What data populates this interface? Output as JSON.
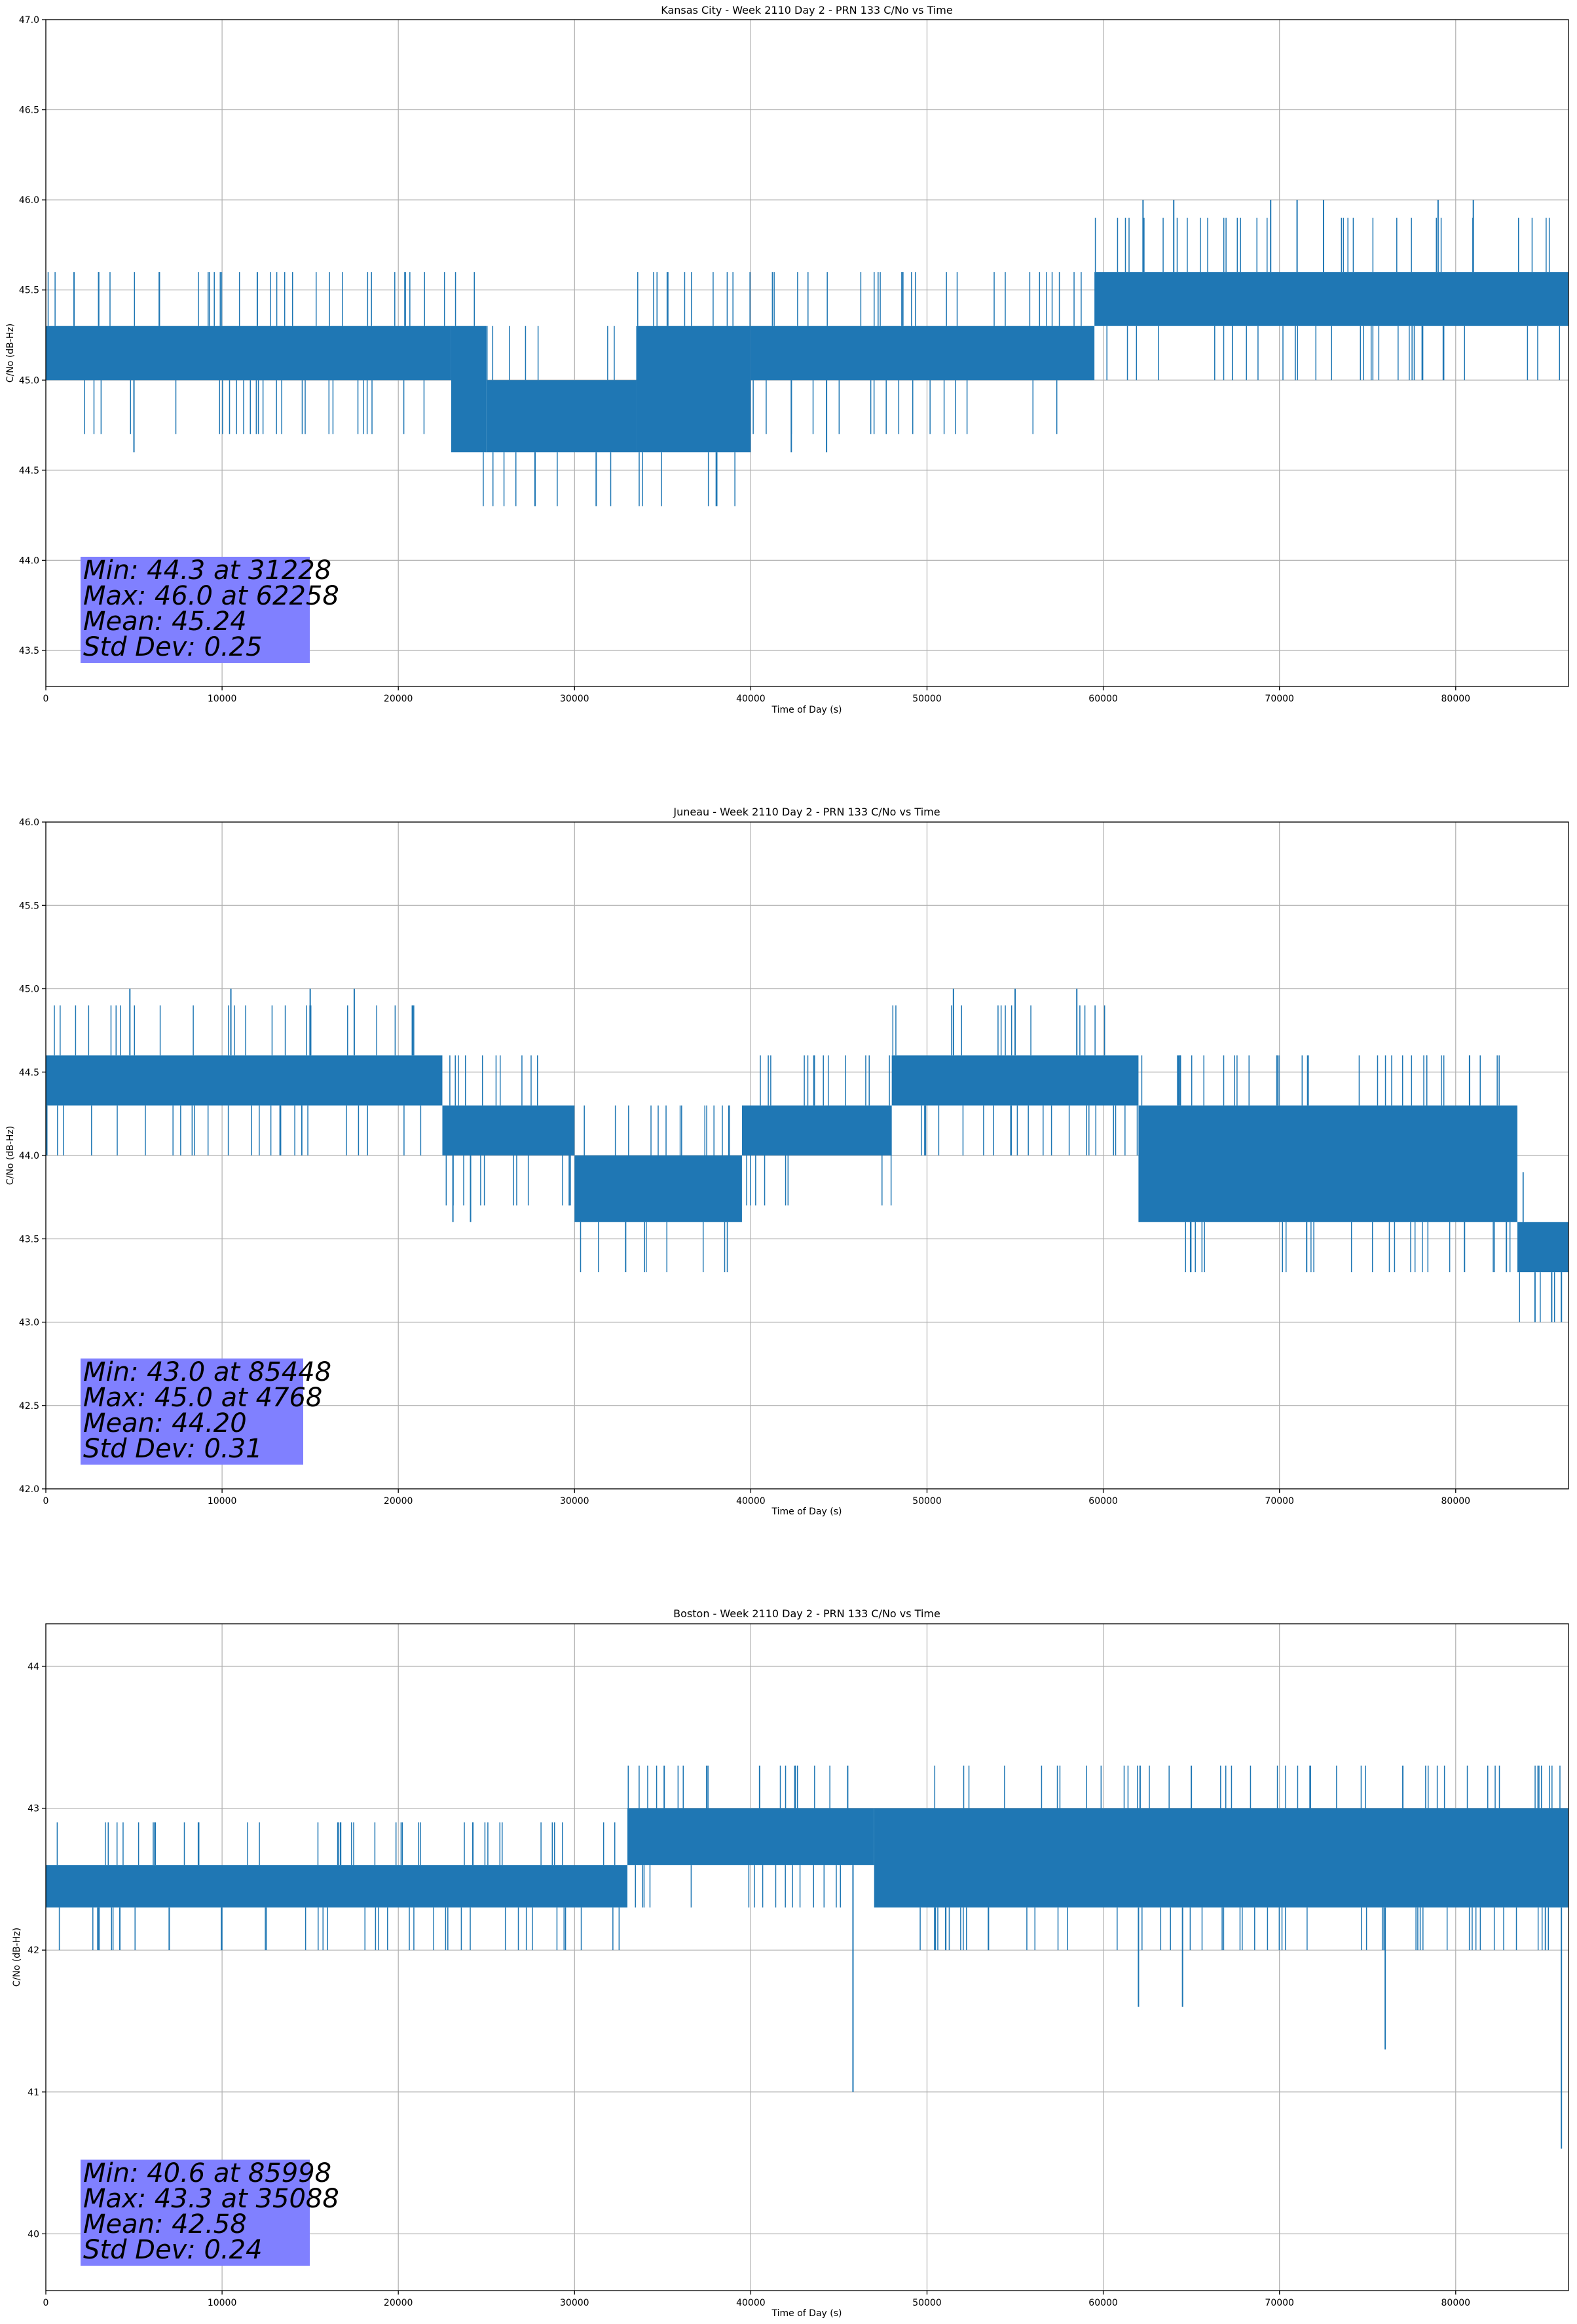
{
  "colors": {
    "series": "#1f77b4",
    "stats_box": "#8080ff",
    "grid": "#b0b0b0"
  },
  "chart_data": [
    {
      "type": "line",
      "title": "Kansas City - Week 2110 Day 2 - PRN 133 C/No vs Time",
      "xlabel": "Time of Day (s)",
      "ylabel": "C/No (dB-Hz)",
      "xlim": [
        0,
        86400
      ],
      "ylim": [
        43.3,
        47.0
      ],
      "xticks": [
        0,
        10000,
        20000,
        30000,
        40000,
        50000,
        60000,
        70000,
        80000
      ],
      "xtick_labels": [
        "0",
        "10000",
        "20000",
        "30000",
        "40000",
        "50000",
        "60000",
        "70000",
        "80000"
      ],
      "yticks": [
        43.5,
        44.0,
        44.5,
        45.0,
        45.5,
        46.0,
        46.5,
        47.0
      ],
      "ytick_labels": [
        "43.5",
        "44.0",
        "44.5",
        "45.0",
        "45.5",
        "46.0",
        "46.5",
        "47.0"
      ],
      "grid": true,
      "segments": [
        {
          "x0": 0,
          "x1": 23000,
          "low": 45.0,
          "high": 45.3
        },
        {
          "x0": 23000,
          "x1": 25000,
          "low": 44.6,
          "high": 45.3
        },
        {
          "x0": 25000,
          "x1": 33500,
          "low": 44.6,
          "high": 45.0
        },
        {
          "x0": 33500,
          "x1": 40000,
          "low": 44.6,
          "high": 45.3
        },
        {
          "x0": 40000,
          "x1": 59500,
          "low": 45.0,
          "high": 45.3
        },
        {
          "x0": 59500,
          "x1": 86400,
          "low": 45.3,
          "high": 45.6
        }
      ],
      "spikes": [
        {
          "x": 31228,
          "value": 44.3
        },
        {
          "x": 62258,
          "value": 46.0
        },
        {
          "x": 64000,
          "value": 46.0
        },
        {
          "x": 69500,
          "value": 46.0
        },
        {
          "x": 71000,
          "value": 46.0
        },
        {
          "x": 72500,
          "value": 46.0
        },
        {
          "x": 79000,
          "value": 46.0
        },
        {
          "x": 81000,
          "value": 46.0
        },
        {
          "x": 12000,
          "value": 45.6
        },
        {
          "x": 5000,
          "value": 44.6
        },
        {
          "x": 42300,
          "value": 44.6
        },
        {
          "x": 44300,
          "value": 44.6
        },
        {
          "x": 1600,
          "value": 45.6
        }
      ],
      "stats": {
        "min": "Min: 44.3 at 31228",
        "max": "Max: 46.0 at 62258",
        "mean": "Mean: 45.24",
        "std": "Std Dev: 0.25"
      }
    },
    {
      "type": "line",
      "title": "Juneau - Week 2110 Day 2 - PRN 133 C/No vs Time",
      "xlabel": "Time of Day (s)",
      "ylabel": "C/No (dB-Hz)",
      "xlim": [
        0,
        86400
      ],
      "ylim": [
        42.0,
        46.0
      ],
      "xticks": [
        0,
        10000,
        20000,
        30000,
        40000,
        50000,
        60000,
        70000,
        80000
      ],
      "xtick_labels": [
        "0",
        "10000",
        "20000",
        "30000",
        "40000",
        "50000",
        "60000",
        "70000",
        "80000"
      ],
      "yticks": [
        42.0,
        42.5,
        43.0,
        43.5,
        44.0,
        44.5,
        45.0,
        45.5,
        46.0
      ],
      "ytick_labels": [
        "42.0",
        "42.5",
        "43.0",
        "43.5",
        "44.0",
        "44.5",
        "45.0",
        "45.5",
        "46.0"
      ],
      "grid": true,
      "segments": [
        {
          "x0": 0,
          "x1": 22500,
          "low": 44.3,
          "high": 44.6
        },
        {
          "x0": 22500,
          "x1": 30000,
          "low": 44.0,
          "high": 44.3
        },
        {
          "x0": 30000,
          "x1": 39500,
          "low": 43.6,
          "high": 44.0
        },
        {
          "x0": 39500,
          "x1": 48000,
          "low": 44.0,
          "high": 44.3
        },
        {
          "x0": 48000,
          "x1": 62000,
          "low": 44.3,
          "high": 44.6
        },
        {
          "x0": 62000,
          "x1": 83500,
          "low": 43.6,
          "high": 44.3
        },
        {
          "x0": 83500,
          "x1": 86400,
          "low": 43.3,
          "high": 43.6
        }
      ],
      "spikes": [
        {
          "x": 4768,
          "value": 45.0
        },
        {
          "x": 10500,
          "value": 45.0
        },
        {
          "x": 15000,
          "value": 45.0
        },
        {
          "x": 17500,
          "value": 45.0
        },
        {
          "x": 51500,
          "value": 45.0
        },
        {
          "x": 55000,
          "value": 45.0
        },
        {
          "x": 58500,
          "value": 45.0
        },
        {
          "x": 32900,
          "value": 43.3
        },
        {
          "x": 23100,
          "value": 43.6
        },
        {
          "x": 24100,
          "value": 43.6
        },
        {
          "x": 80500,
          "value": 43.3
        },
        {
          "x": 85448,
          "value": 43.0
        },
        {
          "x": 84500,
          "value": 43.0
        },
        {
          "x": 86000,
          "value": 43.0
        }
      ],
      "stats": {
        "min": "Min: 43.0 at 85448",
        "max": "Max: 45.0 at 4768",
        "mean": "Mean: 44.20",
        "std": "Std Dev: 0.31"
      }
    },
    {
      "type": "line",
      "title": "Boston - Week 2110 Day 2 - PRN 133 C/No vs Time",
      "xlabel": "Time of Day (s)",
      "ylabel": "C/No (dB-Hz)",
      "xlim": [
        0,
        86400
      ],
      "ylim": [
        39.6,
        44.3
      ],
      "xticks": [
        0,
        10000,
        20000,
        30000,
        40000,
        50000,
        60000,
        70000,
        80000
      ],
      "xtick_labels": [
        "0",
        "10000",
        "20000",
        "30000",
        "40000",
        "50000",
        "60000",
        "70000",
        "80000"
      ],
      "yticks": [
        40,
        41,
        42,
        43,
        44
      ],
      "ytick_labels": [
        "40",
        "41",
        "42",
        "43",
        "44"
      ],
      "grid": true,
      "segments": [
        {
          "x0": 0,
          "x1": 33000,
          "low": 42.3,
          "high": 42.6
        },
        {
          "x0": 33000,
          "x1": 47000,
          "low": 42.6,
          "high": 43.0
        },
        {
          "x0": 47000,
          "x1": 86400,
          "low": 42.3,
          "high": 43.0
        }
      ],
      "spikes": [
        {
          "x": 35088,
          "value": 43.3
        },
        {
          "x": 37500,
          "value": 43.3
        },
        {
          "x": 40500,
          "value": 43.3
        },
        {
          "x": 42500,
          "value": 43.3
        },
        {
          "x": 45500,
          "value": 43.3
        },
        {
          "x": 65000,
          "value": 43.3
        },
        {
          "x": 77000,
          "value": 43.3
        },
        {
          "x": 45800,
          "value": 41.0
        },
        {
          "x": 76000,
          "value": 41.3
        },
        {
          "x": 62000,
          "value": 41.6
        },
        {
          "x": 64500,
          "value": 41.6
        },
        {
          "x": 4200,
          "value": 42.0
        },
        {
          "x": 7000,
          "value": 42.0
        },
        {
          "x": 85998,
          "value": 40.6
        }
      ],
      "stats": {
        "min": "Min: 40.6 at 85998",
        "max": "Max: 43.3 at 35088",
        "mean": "Mean: 42.58",
        "std": "Std Dev: 0.24"
      }
    }
  ]
}
